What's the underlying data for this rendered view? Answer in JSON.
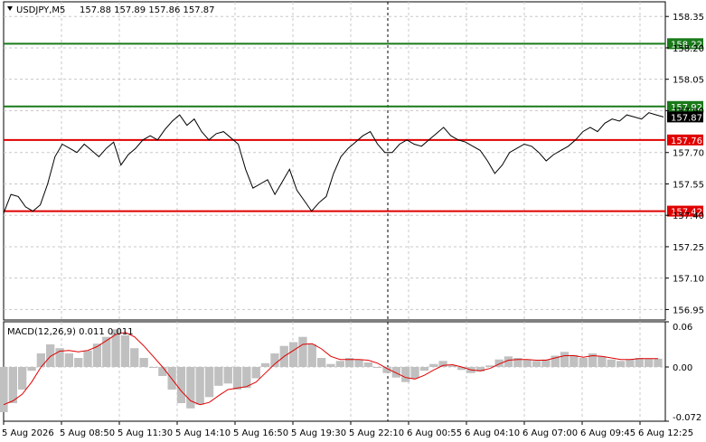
{
  "header": {
    "symbol": "USDJPY,M5",
    "ohlc": "157.88 157.89 157.86 157.87",
    "triangle_icon": "triangle-down-icon"
  },
  "macd": {
    "label": "MACD(12,26,9) 0.011 0.011"
  },
  "colors": {
    "price_line": "#000000",
    "green_level": "#1a7a1a",
    "red_level": "#e00000",
    "current_price_tag": "#000000",
    "histogram": "#c0c0c0",
    "signal_line": "#e00000",
    "grid": "#c8c8c8",
    "background": "#ffffff"
  },
  "chart_data": [
    {
      "type": "line",
      "panel": "price",
      "y_ticks": [
        "158.35",
        "158.20",
        "158.05",
        "157.90",
        "157.70",
        "157.55",
        "157.40",
        "157.25",
        "157.10",
        "156.95"
      ],
      "ylim": [
        156.9,
        158.42
      ],
      "x_ticks": [
        "5 Aug 2026",
        "5 Aug 08:50",
        "5 Aug 11:30",
        "5 Aug 14:10",
        "5 Aug 16:50",
        "5 Aug 19:30",
        "5 Aug 22:10",
        "6 Aug 00:55",
        "6 Aug 04:10",
        "6 Aug 07:00",
        "6 Aug 09:45",
        "6 Aug 12:25"
      ],
      "levels": [
        {
          "value": "158.22",
          "color": "green"
        },
        {
          "value": "157.92",
          "color": "green"
        },
        {
          "value": "157.76",
          "color": "red"
        },
        {
          "value": "157.42",
          "color": "red"
        }
      ],
      "current_price": "157.87",
      "series": [
        {
          "values": [
            157.41,
            157.5,
            157.49,
            157.44,
            157.42,
            157.45,
            157.55,
            157.68,
            157.74,
            157.72,
            157.7,
            157.74,
            157.71,
            157.68,
            157.72,
            157.75,
            157.64,
            157.69,
            157.72,
            157.76,
            157.78,
            157.76,
            157.81,
            157.85,
            157.88,
            157.83,
            157.86,
            157.8,
            157.76,
            157.79,
            157.8,
            157.77,
            157.74,
            157.62,
            157.53,
            157.55,
            157.57,
            157.5,
            157.56,
            157.62,
            157.52,
            157.47,
            157.42,
            157.46,
            157.49,
            157.6,
            157.68,
            157.72,
            157.75,
            157.78,
            157.8,
            157.74,
            157.7,
            157.7,
            157.74,
            157.76,
            157.74,
            157.73,
            157.76,
            157.79,
            157.82,
            157.78,
            157.76,
            157.75,
            157.73,
            157.71,
            157.66,
            157.6,
            157.64,
            157.7,
            157.72,
            157.74,
            157.73,
            157.7,
            157.66,
            157.69,
            157.71,
            157.73,
            157.76,
            157.8,
            157.82,
            157.8,
            157.84,
            157.86,
            157.85,
            157.88,
            157.87,
            157.86,
            157.89,
            157.88,
            157.87
          ]
        }
      ]
    },
    {
      "type": "bar",
      "panel": "macd",
      "y_ticks": [
        "0.06",
        "0.00",
        "-0.072"
      ],
      "ylim": [
        -0.072,
        0.06
      ],
      "series": [
        {
          "name": "MACD",
          "type": "bar",
          "values": [
            -0.06,
            -0.048,
            -0.03,
            -0.005,
            0.018,
            0.03,
            0.025,
            0.018,
            0.012,
            0.022,
            0.031,
            0.04,
            0.05,
            0.042,
            0.025,
            0.012,
            0.0,
            -0.012,
            -0.03,
            -0.048,
            -0.055,
            -0.05,
            -0.04,
            -0.025,
            -0.022,
            -0.03,
            -0.028,
            -0.015,
            0.005,
            0.018,
            0.028,
            0.033,
            0.04,
            0.03,
            0.012,
            0.004,
            0.008,
            0.012,
            0.01,
            0.006,
            0.0,
            -0.008,
            -0.014,
            -0.02,
            -0.015,
            -0.005,
            0.004,
            0.008,
            0.002,
            -0.004,
            -0.008,
            -0.006,
            0.002,
            0.01,
            0.014,
            0.012,
            0.01,
            0.008,
            0.01,
            0.015,
            0.02,
            0.016,
            0.012,
            0.018,
            0.014,
            0.01,
            0.008,
            0.01,
            0.012,
            0.011,
            0.011
          ]
        },
        {
          "name": "Signal",
          "type": "line",
          "values": [
            -0.05,
            -0.045,
            -0.036,
            -0.02,
            0.0,
            0.014,
            0.021,
            0.022,
            0.02,
            0.022,
            0.027,
            0.035,
            0.043,
            0.046,
            0.04,
            0.028,
            0.014,
            0.0,
            -0.016,
            -0.032,
            -0.045,
            -0.05,
            -0.047,
            -0.038,
            -0.03,
            -0.028,
            -0.026,
            -0.02,
            -0.008,
            0.004,
            0.014,
            0.022,
            0.03,
            0.031,
            0.024,
            0.014,
            0.01,
            0.01,
            0.01,
            0.009,
            0.005,
            -0.002,
            -0.008,
            -0.014,
            -0.016,
            -0.011,
            -0.004,
            0.002,
            0.003,
            0.0,
            -0.004,
            -0.005,
            -0.002,
            0.004,
            0.009,
            0.01,
            0.01,
            0.009,
            0.009,
            0.012,
            0.015,
            0.015,
            0.013,
            0.015,
            0.014,
            0.012,
            0.01,
            0.01,
            0.011,
            0.011,
            0.011
          ]
        }
      ]
    }
  ]
}
